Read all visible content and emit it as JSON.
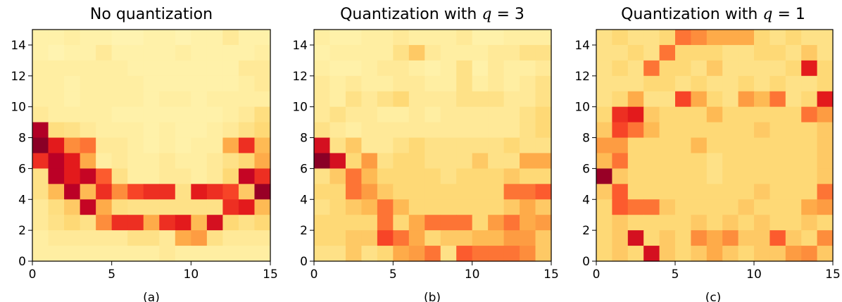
{
  "colors": {
    "colormap": "YlOrRd",
    "low": "#ffffcc",
    "high": "#800026",
    "axis": "#000000"
  },
  "chart_data": [
    {
      "type": "heatmap",
      "title": "No quantization",
      "caption": "(a)",
      "xlim": [
        0,
        15
      ],
      "ylim": [
        0,
        15
      ],
      "xticks": [
        "0",
        "5",
        "10",
        "15"
      ],
      "yticks": [
        "0",
        "2",
        "4",
        "6",
        "8",
        "10",
        "12",
        "14"
      ],
      "value_range": [
        0,
        1
      ],
      "rows_from_y14_to_y0": [
        [
          0.1,
          0.1,
          0.12,
          0.1,
          0.1,
          0.08,
          0.08,
          0.1,
          0.1,
          0.08,
          0.1,
          0.1,
          0.15,
          0.1,
          0.1
        ],
        [
          0.1,
          0.08,
          0.1,
          0.1,
          0.15,
          0.1,
          0.1,
          0.1,
          0.1,
          0.12,
          0.1,
          0.1,
          0.1,
          0.1,
          0.12
        ],
        [
          0.12,
          0.12,
          0.12,
          0.12,
          0.12,
          0.12,
          0.1,
          0.1,
          0.1,
          0.1,
          0.1,
          0.1,
          0.1,
          0.15,
          0.15
        ],
        [
          0.12,
          0.12,
          0.1,
          0.12,
          0.12,
          0.12,
          0.12,
          0.1,
          0.1,
          0.1,
          0.1,
          0.1,
          0.1,
          0.12,
          0.15
        ],
        [
          0.12,
          0.12,
          0.1,
          0.12,
          0.12,
          0.12,
          0.12,
          0.1,
          0.12,
          0.12,
          0.1,
          0.12,
          0.12,
          0.12,
          0.12
        ],
        [
          0.15,
          0.12,
          0.12,
          0.12,
          0.12,
          0.1,
          0.1,
          0.1,
          0.1,
          0.1,
          0.1,
          0.1,
          0.12,
          0.15,
          0.22
        ],
        [
          0.9,
          0.22,
          0.2,
          0.15,
          0.12,
          0.12,
          0.12,
          0.1,
          0.12,
          0.1,
          0.1,
          0.12,
          0.15,
          0.2,
          0.25
        ],
        [
          0.98,
          0.75,
          0.5,
          0.55,
          0.15,
          0.15,
          0.12,
          0.1,
          0.12,
          0.1,
          0.12,
          0.12,
          0.4,
          0.7,
          0.35
        ],
        [
          0.7,
          0.88,
          0.75,
          0.4,
          0.12,
          0.15,
          0.12,
          0.12,
          0.15,
          0.12,
          0.12,
          0.15,
          0.2,
          0.25,
          0.4
        ],
        [
          0.2,
          0.88,
          0.75,
          0.85,
          0.6,
          0.2,
          0.12,
          0.12,
          0.15,
          0.15,
          0.12,
          0.15,
          0.25,
          0.85,
          0.7
        ],
        [
          0.2,
          0.35,
          0.88,
          0.35,
          0.7,
          0.5,
          0.65,
          0.7,
          0.7,
          0.2,
          0.75,
          0.7,
          0.65,
          0.3,
          0.95
        ],
        [
          0.15,
          0.22,
          0.3,
          0.85,
          0.4,
          0.22,
          0.2,
          0.2,
          0.2,
          0.2,
          0.2,
          0.2,
          0.7,
          0.75,
          0.35
        ],
        [
          0.15,
          0.2,
          0.25,
          0.2,
          0.5,
          0.7,
          0.7,
          0.4,
          0.7,
          0.75,
          0.35,
          0.8,
          0.25,
          0.2,
          0.25
        ],
        [
          0.12,
          0.15,
          0.15,
          0.15,
          0.15,
          0.15,
          0.2,
          0.2,
          0.15,
          0.4,
          0.45,
          0.2,
          0.15,
          0.15,
          0.15
        ],
        [
          0.12,
          0.12,
          0.12,
          0.12,
          0.12,
          0.12,
          0.12,
          0.12,
          0.15,
          0.12,
          0.12,
          0.12,
          0.12,
          0.12,
          0.12
        ]
      ]
    },
    {
      "type": "heatmap",
      "title": "Quantization with q = 3",
      "title_text": "Quantization with ",
      "title_math": "q",
      "title_tail": " = 3",
      "caption": "(b)",
      "xlim": [
        0,
        15
      ],
      "ylim": [
        0,
        15
      ],
      "xticks": [
        "0",
        "5",
        "10",
        "15"
      ],
      "yticks": [
        "0",
        "2",
        "4",
        "6",
        "8",
        "10",
        "12",
        "14"
      ],
      "value_range": [
        0,
        1
      ],
      "rows_from_y14_to_y0": [
        [
          0.12,
          0.1,
          0.1,
          0.12,
          0.12,
          0.15,
          0.12,
          0.12,
          0.12,
          0.15,
          0.1,
          0.1,
          0.12,
          0.12,
          0.12
        ],
        [
          0.1,
          0.12,
          0.12,
          0.12,
          0.12,
          0.2,
          0.3,
          0.15,
          0.12,
          0.12,
          0.12,
          0.15,
          0.15,
          0.2,
          0.2
        ],
        [
          0.12,
          0.1,
          0.1,
          0.12,
          0.15,
          0.15,
          0.12,
          0.1,
          0.12,
          0.2,
          0.1,
          0.15,
          0.12,
          0.12,
          0.15
        ],
        [
          0.15,
          0.12,
          0.15,
          0.12,
          0.12,
          0.15,
          0.15,
          0.12,
          0.12,
          0.2,
          0.12,
          0.15,
          0.12,
          0.15,
          0.2
        ],
        [
          0.15,
          0.12,
          0.2,
          0.15,
          0.2,
          0.25,
          0.15,
          0.15,
          0.15,
          0.2,
          0.2,
          0.2,
          0.15,
          0.15,
          0.2
        ],
        [
          0.15,
          0.2,
          0.15,
          0.15,
          0.12,
          0.12,
          0.15,
          0.12,
          0.15,
          0.15,
          0.15,
          0.15,
          0.15,
          0.2,
          0.25
        ],
        [
          0.2,
          0.15,
          0.12,
          0.15,
          0.15,
          0.15,
          0.15,
          0.15,
          0.15,
          0.15,
          0.15,
          0.15,
          0.15,
          0.2,
          0.25
        ],
        [
          0.8,
          0.2,
          0.3,
          0.15,
          0.15,
          0.2,
          0.25,
          0.2,
          0.2,
          0.2,
          0.2,
          0.2,
          0.25,
          0.2,
          0.2
        ],
        [
          0.98,
          0.8,
          0.25,
          0.45,
          0.2,
          0.25,
          0.25,
          0.2,
          0.2,
          0.2,
          0.3,
          0.2,
          0.2,
          0.4,
          0.4
        ],
        [
          0.2,
          0.3,
          0.55,
          0.35,
          0.25,
          0.25,
          0.25,
          0.25,
          0.2,
          0.25,
          0.25,
          0.25,
          0.3,
          0.25,
          0.25
        ],
        [
          0.25,
          0.25,
          0.55,
          0.45,
          0.3,
          0.25,
          0.25,
          0.25,
          0.25,
          0.25,
          0.25,
          0.25,
          0.55,
          0.55,
          0.6
        ],
        [
          0.2,
          0.25,
          0.3,
          0.35,
          0.55,
          0.35,
          0.25,
          0.25,
          0.25,
          0.25,
          0.25,
          0.25,
          0.3,
          0.4,
          0.3
        ],
        [
          0.25,
          0.25,
          0.25,
          0.25,
          0.55,
          0.25,
          0.4,
          0.55,
          0.55,
          0.55,
          0.25,
          0.45,
          0.55,
          0.4,
          0.45
        ],
        [
          0.25,
          0.25,
          0.3,
          0.3,
          0.65,
          0.55,
          0.4,
          0.25,
          0.3,
          0.3,
          0.35,
          0.35,
          0.45,
          0.45,
          0.3
        ],
        [
          0.2,
          0.2,
          0.3,
          0.2,
          0.25,
          0.4,
          0.45,
          0.55,
          0.2,
          0.6,
          0.55,
          0.55,
          0.55,
          0.5,
          0.3
        ]
      ]
    },
    {
      "type": "heatmap",
      "title": "Quantization with q = 1",
      "title_text": "Quantization with ",
      "title_math": "q",
      "title_tail": " = 1",
      "caption": "(c)",
      "xlim": [
        0,
        15
      ],
      "ylim": [
        0,
        15
      ],
      "xticks": [
        "0",
        "5",
        "10",
        "15"
      ],
      "yticks": [
        "0",
        "2",
        "4",
        "6",
        "8",
        "10",
        "12",
        "14"
      ],
      "value_range": [
        0,
        1
      ],
      "rows_from_y14_to_y0": [
        [
          0.2,
          0.25,
          0.2,
          0.2,
          0.25,
          0.55,
          0.5,
          0.4,
          0.4,
          0.4,
          0.25,
          0.2,
          0.25,
          0.2,
          0.2
        ],
        [
          0.2,
          0.2,
          0.25,
          0.2,
          0.55,
          0.25,
          0.25,
          0.25,
          0.2,
          0.2,
          0.25,
          0.25,
          0.2,
          0.3,
          0.2
        ],
        [
          0.2,
          0.25,
          0.2,
          0.55,
          0.25,
          0.25,
          0.2,
          0.3,
          0.2,
          0.2,
          0.2,
          0.2,
          0.25,
          0.75,
          0.25
        ],
        [
          0.2,
          0.2,
          0.2,
          0.25,
          0.25,
          0.2,
          0.25,
          0.2,
          0.2,
          0.25,
          0.2,
          0.25,
          0.2,
          0.2,
          0.25
        ],
        [
          0.2,
          0.25,
          0.4,
          0.2,
          0.2,
          0.65,
          0.4,
          0.25,
          0.2,
          0.45,
          0.35,
          0.55,
          0.2,
          0.25,
          0.75
        ],
        [
          0.25,
          0.7,
          0.75,
          0.3,
          0.25,
          0.25,
          0.25,
          0.35,
          0.25,
          0.25,
          0.25,
          0.25,
          0.25,
          0.55,
          0.45
        ],
        [
          0.3,
          0.65,
          0.55,
          0.35,
          0.25,
          0.25,
          0.25,
          0.25,
          0.25,
          0.25,
          0.3,
          0.25,
          0.25,
          0.25,
          0.3
        ],
        [
          0.45,
          0.45,
          0.25,
          0.25,
          0.25,
          0.25,
          0.35,
          0.25,
          0.25,
          0.25,
          0.25,
          0.25,
          0.25,
          0.25,
          0.3
        ],
        [
          0.35,
          0.55,
          0.25,
          0.25,
          0.25,
          0.25,
          0.25,
          0.2,
          0.25,
          0.25,
          0.25,
          0.25,
          0.25,
          0.25,
          0.3
        ],
        [
          0.95,
          0.3,
          0.25,
          0.25,
          0.25,
          0.25,
          0.25,
          0.2,
          0.25,
          0.25,
          0.25,
          0.25,
          0.25,
          0.25,
          0.3
        ],
        [
          0.3,
          0.6,
          0.25,
          0.25,
          0.25,
          0.25,
          0.25,
          0.25,
          0.25,
          0.25,
          0.3,
          0.25,
          0.25,
          0.25,
          0.55
        ],
        [
          0.25,
          0.6,
          0.55,
          0.55,
          0.3,
          0.25,
          0.25,
          0.25,
          0.25,
          0.3,
          0.25,
          0.25,
          0.25,
          0.4,
          0.45
        ],
        [
          0.25,
          0.3,
          0.25,
          0.25,
          0.25,
          0.25,
          0.3,
          0.25,
          0.3,
          0.25,
          0.3,
          0.25,
          0.25,
          0.3,
          0.25
        ],
        [
          0.25,
          0.3,
          0.8,
          0.25,
          0.3,
          0.25,
          0.5,
          0.4,
          0.5,
          0.3,
          0.3,
          0.6,
          0.3,
          0.25,
          0.5
        ],
        [
          0.25,
          0.3,
          0.25,
          0.8,
          0.3,
          0.25,
          0.3,
          0.4,
          0.3,
          0.25,
          0.3,
          0.3,
          0.45,
          0.5,
          0.3
        ]
      ]
    }
  ]
}
